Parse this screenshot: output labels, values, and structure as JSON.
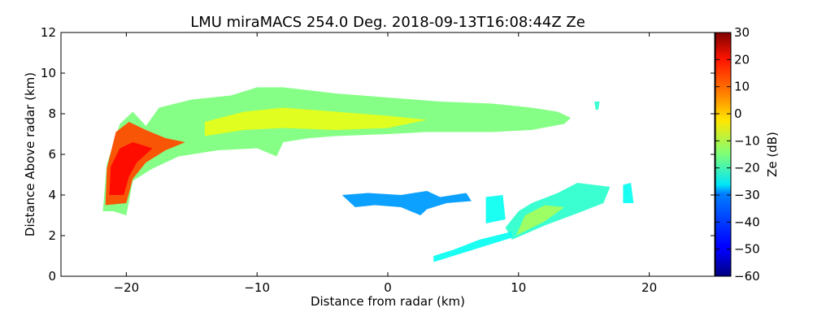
{
  "chart_data": {
    "type": "heatmap",
    "title": "LMU miraMACS 254.0 Deg. 2018-09-13T16:08:44Z  Ze",
    "xlabel": "Distance from radar (km)",
    "ylabel": "Distance Above radar  (km)",
    "xlim": [
      -25,
      25
    ],
    "ylim": [
      0,
      12
    ],
    "xticks": [
      -20,
      -10,
      0,
      10,
      20
    ],
    "xtick_labels": [
      "−20",
      "−10",
      "0",
      "10",
      "20"
    ],
    "yticks": [
      0,
      2,
      4,
      6,
      8,
      10,
      12
    ],
    "ytick_labels": [
      "0",
      "2",
      "4",
      "6",
      "8",
      "10",
      "12"
    ],
    "colorbar": {
      "label": "Ze (dB)",
      "range": [
        -60,
        30
      ],
      "ticks": [
        30,
        20,
        10,
        0,
        -10,
        -20,
        -30,
        -40,
        -50,
        -60
      ],
      "tick_labels": [
        "30",
        "20",
        "10",
        "0",
        "−10",
        "−20",
        "−30",
        "−40",
        "−50",
        "−60"
      ],
      "colormap": "jet"
    },
    "echo_regions": [
      {
        "name": "upper-cloud-layer",
        "ze_dB": -15,
        "points": [
          [
            -21.8,
            3.2
          ],
          [
            -21.5,
            5.5
          ],
          [
            -20.5,
            7.5
          ],
          [
            -19.5,
            8.1
          ],
          [
            -18.5,
            7.4
          ],
          [
            -17.5,
            8.3
          ],
          [
            -15,
            8.7
          ],
          [
            -12,
            8.9
          ],
          [
            -10,
            9.3
          ],
          [
            -8,
            9.3
          ],
          [
            -4,
            9.0
          ],
          [
            0,
            8.8
          ],
          [
            4,
            8.6
          ],
          [
            8,
            8.5
          ],
          [
            11,
            8.3
          ],
          [
            13,
            8.1
          ],
          [
            14,
            7.8
          ],
          [
            13.5,
            7.5
          ],
          [
            11,
            7.2
          ],
          [
            8,
            7.1
          ],
          [
            5,
            7.1
          ],
          [
            3,
            7.1
          ],
          [
            0,
            7.0
          ],
          [
            -4,
            6.9
          ],
          [
            -6,
            6.8
          ],
          [
            -8,
            6.6
          ],
          [
            -8.5,
            5.9
          ],
          [
            -10,
            6.3
          ],
          [
            -13,
            6.2
          ],
          [
            -16,
            5.9
          ],
          [
            -18,
            5.3
          ],
          [
            -19.5,
            4.7
          ],
          [
            -20,
            3.0
          ],
          [
            -21,
            3.2
          ]
        ]
      },
      {
        "name": "upper-cloud-core",
        "ze_dB": -6,
        "points": [
          [
            -14,
            7.6
          ],
          [
            -11,
            8.1
          ],
          [
            -8,
            8.3
          ],
          [
            -4,
            8.1
          ],
          [
            0,
            7.9
          ],
          [
            3,
            7.7
          ],
          [
            0,
            7.3
          ],
          [
            -4,
            7.2
          ],
          [
            -8,
            7.3
          ],
          [
            -11,
            7.2
          ],
          [
            -14,
            6.9
          ]
        ]
      },
      {
        "name": "strong-echo-left",
        "ze_dB": 12,
        "points": [
          [
            -21.6,
            3.5
          ],
          [
            -21.5,
            5.3
          ],
          [
            -20.8,
            7.1
          ],
          [
            -19.8,
            7.6
          ],
          [
            -18.5,
            7.2
          ],
          [
            -17,
            6.8
          ],
          [
            -15.5,
            6.6
          ],
          [
            -17,
            6.2
          ],
          [
            -18.5,
            5.6
          ],
          [
            -19.5,
            4.8
          ],
          [
            -20,
            3.6
          ]
        ]
      },
      {
        "name": "strong-echo-core",
        "ze_dB": 18,
        "points": [
          [
            -21.3,
            4.0
          ],
          [
            -21.2,
            5.4
          ],
          [
            -20.5,
            6.3
          ],
          [
            -19.5,
            6.6
          ],
          [
            -18,
            6.3
          ],
          [
            -19.2,
            5.6
          ],
          [
            -19.8,
            4.9
          ],
          [
            -20.2,
            4.0
          ]
        ]
      },
      {
        "name": "mid-blue-layer",
        "ze_dB": -35,
        "points": [
          [
            -3.5,
            4.0
          ],
          [
            -1.5,
            4.1
          ],
          [
            1,
            4.0
          ],
          [
            3,
            4.2
          ],
          [
            4,
            3.9
          ],
          [
            6,
            4.1
          ],
          [
            6.4,
            3.7
          ],
          [
            4.5,
            3.6
          ],
          [
            3,
            3.3
          ],
          [
            2.5,
            3.0
          ],
          [
            1,
            3.4
          ],
          [
            -1,
            3.5
          ],
          [
            -2.5,
            3.4
          ]
        ]
      },
      {
        "name": "lower-slanted-layer",
        "ze_dB": -22,
        "points": [
          [
            9.5,
            1.8
          ],
          [
            12,
            2.5
          ],
          [
            14.5,
            3.1
          ],
          [
            16.5,
            3.6
          ],
          [
            17,
            4.4
          ],
          [
            14.5,
            4.6
          ],
          [
            13,
            4.1
          ],
          [
            11,
            3.6
          ],
          [
            10,
            3.2
          ],
          [
            9,
            2.4
          ]
        ]
      },
      {
        "name": "lower-slanted-core",
        "ze_dB": -12,
        "points": [
          [
            9.8,
            2.0
          ],
          [
            12,
            2.7
          ],
          [
            13.5,
            3.4
          ],
          [
            12,
            3.5
          ],
          [
            10.5,
            3.0
          ]
        ]
      },
      {
        "name": "low-band",
        "ze_dB": -25,
        "points": [
          [
            3.5,
            0.7
          ],
          [
            7,
            1.4
          ],
          [
            9.5,
            1.9
          ],
          [
            9.5,
            2.2
          ],
          [
            7,
            1.8
          ],
          [
            5,
            1.3
          ],
          [
            3.5,
            1.0
          ]
        ]
      },
      {
        "name": "scattered-echo",
        "ze_dB": -25,
        "points": [
          [
            7.5,
            2.6
          ],
          [
            9,
            2.8
          ],
          [
            8.8,
            4.0
          ],
          [
            7.5,
            3.9
          ]
        ]
      },
      {
        "name": "isolated-echo-right",
        "ze_dB": -25,
        "points": [
          [
            18,
            3.6
          ],
          [
            18.8,
            3.6
          ],
          [
            18.6,
            4.6
          ],
          [
            18,
            4.5
          ]
        ]
      },
      {
        "name": "isolated-echo-top",
        "ze_dB": -22,
        "points": [
          [
            15.8,
            8.6
          ],
          [
            16.2,
            8.6
          ],
          [
            16.1,
            8.2
          ],
          [
            15.9,
            8.2
          ]
        ]
      }
    ]
  }
}
